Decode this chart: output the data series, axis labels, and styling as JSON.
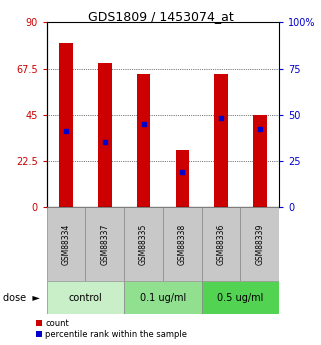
{
  "title": "GDS1809 / 1453074_at",
  "categories": [
    "GSM88334",
    "GSM88337",
    "GSM88335",
    "GSM88338",
    "GSM88336",
    "GSM88339"
  ],
  "bar_values": [
    80,
    70,
    65,
    28,
    65,
    45
  ],
  "percentile_values": [
    41,
    35,
    45,
    19,
    48,
    42
  ],
  "bar_color": "#cc0000",
  "percentile_color": "#0000cc",
  "left_ylim": [
    0,
    90
  ],
  "left_yticks": [
    0,
    22.5,
    45,
    67.5,
    90
  ],
  "left_yticklabels": [
    "0",
    "22.5",
    "45",
    "67.5",
    "90"
  ],
  "right_yticks": [
    0,
    25,
    50,
    75,
    100
  ],
  "right_yticklabels": [
    "0",
    "25",
    "50",
    "75",
    "100%"
  ],
  "groups": [
    {
      "label": "control",
      "indices": [
        0,
        1
      ],
      "color": "#c8efc8"
    },
    {
      "label": "0.1 ug/ml",
      "indices": [
        2,
        3
      ],
      "color": "#90e090"
    },
    {
      "label": "0.5 ug/ml",
      "indices": [
        4,
        5
      ],
      "color": "#52d452"
    }
  ],
  "legend_count": "count",
  "legend_percentile": "percentile rank within the sample",
  "bar_width": 0.35,
  "xlabel_bg": "#c8c8c8",
  "xlabel_border": "#888888"
}
